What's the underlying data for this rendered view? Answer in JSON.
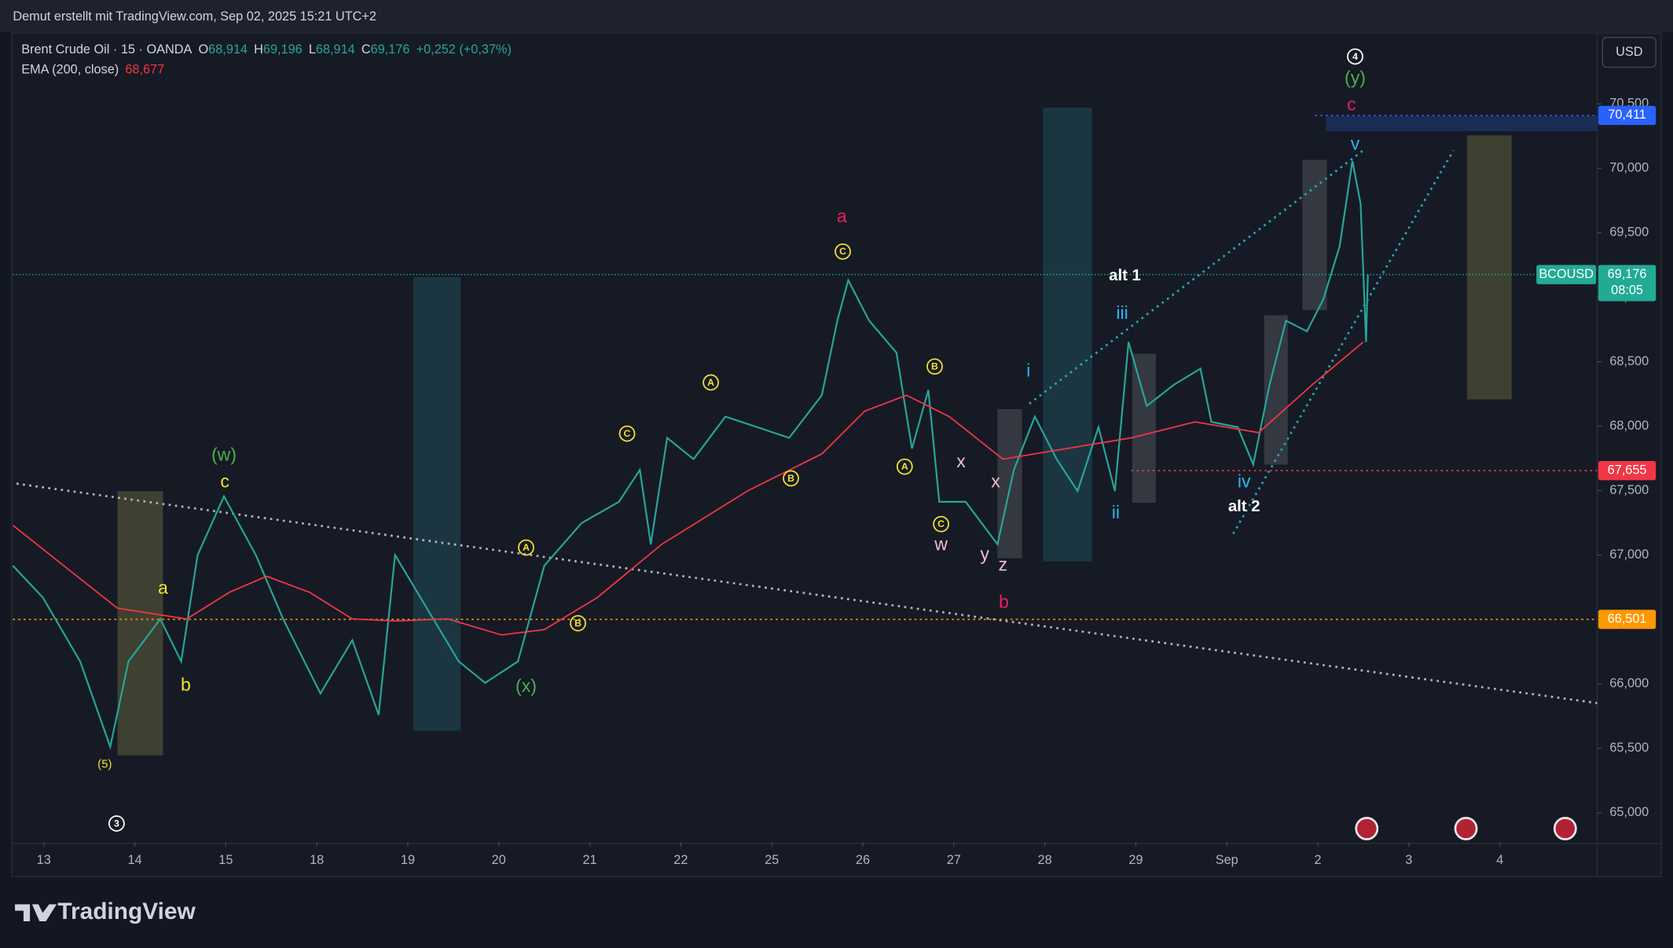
{
  "watermark": "Demut erstellt mit TradingView.com, Sep 02, 2025 15:21 UTC+2",
  "brand": "TradingView",
  "currency_button": "USD",
  "chart_data": {
    "type": "line",
    "symbol_tag": "BCOUSD",
    "countdown": "08:05",
    "legend_values": [
      {
        "key": "O",
        "text": "68,914"
      },
      {
        "key": "H",
        "text": "69,196"
      },
      {
        "key": "L",
        "text": "68,914"
      },
      {
        "key": "C",
        "text": "69,176"
      }
    ],
    "change": "+0,252 (+0,37%)",
    "ema_value": "68,677",
    "xlim": [
      -0.34,
      17.07
    ],
    "ylim": [
      64770,
      71050
    ],
    "xticks": [
      {
        "value": 0,
        "label": "13"
      },
      {
        "value": 1,
        "label": "14"
      },
      {
        "value": 2,
        "label": "15"
      },
      {
        "value": 3,
        "label": "18"
      },
      {
        "value": 4,
        "label": "19"
      },
      {
        "value": 5,
        "label": "20"
      },
      {
        "value": 6,
        "label": "21"
      },
      {
        "value": 7,
        "label": "22"
      },
      {
        "value": 8,
        "label": "25"
      },
      {
        "value": 9,
        "label": "26"
      },
      {
        "value": 10,
        "label": "27"
      },
      {
        "value": 11,
        "label": "28"
      },
      {
        "value": 12,
        "label": "29"
      },
      {
        "value": 13,
        "label": "Sep"
      },
      {
        "value": 14,
        "label": "2"
      },
      {
        "value": 15,
        "label": "3"
      },
      {
        "value": 16,
        "label": "4"
      }
    ],
    "yticks": [
      {
        "value": 65000,
        "label": "65,000"
      },
      {
        "value": 65500,
        "label": "65,500"
      },
      {
        "value": 66000,
        "label": "66,000"
      },
      {
        "value": 66500,
        "label": "66,500"
      },
      {
        "value": 67000,
        "label": "67,000"
      },
      {
        "value": 67500,
        "label": "67,500"
      },
      {
        "value": 68000,
        "label": "68,000"
      },
      {
        "value": 68500,
        "label": "68,500"
      },
      {
        "value": 69000,
        "label": "69,000"
      },
      {
        "value": 69500,
        "label": "69,500"
      },
      {
        "value": 70000,
        "label": "70,000"
      },
      {
        "value": 70500,
        "label": "70,500"
      }
    ],
    "series": [
      {
        "name": "Brent Crude Oil · 15 · OANDA",
        "color": "#26a69a",
        "x": [
          -0.34,
          -0.01,
          0.4,
          0.73,
          0.93,
          1.28,
          1.51,
          1.69,
          1.98,
          2.33,
          2.63,
          3.04,
          3.39,
          3.68,
          3.86,
          4.21,
          4.56,
          4.85,
          5.21,
          5.5,
          5.91,
          6.32,
          6.55,
          6.67,
          6.85,
          7.14,
          7.49,
          7.84,
          8.19,
          8.55,
          8.72,
          8.84,
          9.07,
          9.37,
          9.54,
          9.72,
          9.84,
          10.13,
          10.48,
          10.66,
          10.89,
          11.13,
          11.36,
          11.59,
          11.77,
          11.92,
          12.12,
          12.42,
          12.71,
          12.83,
          13.12,
          13.29,
          13.47,
          13.65,
          13.88,
          14.06,
          14.24,
          14.38,
          14.47,
          14.53,
          14.55
        ],
        "values": [
          66917,
          66670,
          66174,
          65512,
          66174,
          66504,
          66174,
          67000,
          67455,
          67000,
          66504,
          65926,
          66339,
          65760,
          67000,
          66587,
          66174,
          66008,
          66174,
          66917,
          67248,
          67413,
          67661,
          67083,
          67909,
          67744,
          68074,
          67992,
          67909,
          68240,
          68818,
          69132,
          68818,
          68570,
          67826,
          68281,
          67413,
          67413,
          67083,
          67661,
          68074,
          67744,
          67496,
          67992,
          67496,
          68653,
          68157,
          68322,
          68446,
          68033,
          67992,
          67702,
          68322,
          68818,
          68736,
          68983,
          69397,
          70058,
          69727,
          68653,
          69176
        ]
      },
      {
        "name": "EMA (200, close)",
        "color": "#f23645",
        "x": [
          -0.34,
          0.22,
          0.81,
          1.57,
          2.04,
          2.45,
          2.92,
          3.39,
          3.86,
          4.44,
          5.03,
          5.5,
          6.08,
          6.79,
          7.73,
          8.55,
          9.02,
          9.48,
          9.95,
          10.54,
          11.24,
          11.95,
          12.65,
          13.35,
          13.94,
          14.29,
          14.5
        ],
        "values": [
          67231,
          66917,
          66587,
          66504,
          66711,
          66835,
          66711,
          66504,
          66488,
          66504,
          66380,
          66421,
          66669,
          67083,
          67496,
          67785,
          68116,
          68240,
          68074,
          67744,
          67826,
          67909,
          68033,
          67950,
          68322,
          68529,
          68653
        ]
      }
    ],
    "price_lines": [
      {
        "value": 70411,
        "label": "70,411",
        "color": "#2962ff",
        "from_x": 13.97
      },
      {
        "value": 69176,
        "label": "69,176",
        "color": "#22ab94",
        "from_x": -0.34
      },
      {
        "value": 67655,
        "label": "67,655",
        "color": "#f23645",
        "from_x": 11.95
      },
      {
        "value": 66501,
        "label": "66,501",
        "color": "#ff9800",
        "from_x": -0.34
      }
    ],
    "boxes": [
      {
        "x": [
          0.81,
          1.31
        ],
        "y": [
          65446,
          67496
        ],
        "color": "#5a5a3a"
      },
      {
        "x": [
          4.06,
          4.58
        ],
        "y": [
          65636,
          69157
        ],
        "color": "#1f4a55"
      },
      {
        "x": [
          10.48,
          10.75
        ],
        "y": [
          66975,
          68132
        ],
        "color": "#4a4d55"
      },
      {
        "x": [
          10.98,
          11.52
        ],
        "y": [
          66950,
          70471
        ],
        "color": "#1f4a55"
      },
      {
        "x": [
          11.96,
          12.22
        ],
        "y": [
          67405,
          68562
        ],
        "color": "#4a4d55"
      },
      {
        "x": [
          13.41,
          13.67
        ],
        "y": [
          67702,
          68860
        ],
        "color": "#4a4d55"
      },
      {
        "x": [
          13.83,
          14.1
        ],
        "y": [
          68901,
          70066
        ],
        "color": "#4a4d55"
      },
      {
        "x": [
          15.64,
          16.13
        ],
        "y": [
          68207,
          70256
        ],
        "color": "#5a5a3a"
      },
      {
        "x": [
          14.09,
          17.07
        ],
        "y": [
          70289,
          70405
        ],
        "color": "#1e3a7a"
      }
    ],
    "trend_lines": [
      {
        "x": [
          -0.3,
          17.07
        ],
        "y": [
          67554,
          65851
        ],
        "color": "#b2b5be"
      },
      {
        "x": [
          10.83,
          14.5
        ],
        "y": [
          68174,
          70140
        ],
        "color": "#2aa3c0"
      },
      {
        "x": [
          13.07,
          15.49
        ],
        "y": [
          67165,
          70140
        ],
        "color": "#2aa3c0"
      }
    ],
    "annotations": [
      {
        "text": "(5)",
        "x": 0.67,
        "y": 65372,
        "color": "#f5e130",
        "size": 11
      },
      {
        "text": "3",
        "x": 0.8,
        "y": 64917,
        "color": "#ffffff",
        "circled": true
      },
      {
        "text": "a",
        "x": 1.31,
        "y": 66736,
        "color": "#f5e130"
      },
      {
        "text": "b",
        "x": 1.56,
        "y": 65983,
        "color": "#f5e130"
      },
      {
        "text": "c",
        "x": 1.99,
        "y": 67562,
        "color": "#f5e130"
      },
      {
        "text": "(w)",
        "x": 1.98,
        "y": 67769,
        "color": "#4caf50"
      },
      {
        "text": "(x)",
        "x": 5.3,
        "y": 65975,
        "color": "#4caf50"
      },
      {
        "text": "A",
        "x": 5.3,
        "y": 67058,
        "color": "#f5e130",
        "circled": true
      },
      {
        "text": "B",
        "x": 5.87,
        "y": 66471,
        "color": "#f5e130",
        "circled": true
      },
      {
        "text": "C",
        "x": 6.41,
        "y": 67942,
        "color": "#f5e130",
        "circled": true
      },
      {
        "text": "A",
        "x": 7.33,
        "y": 68339,
        "color": "#f5e130",
        "circled": true
      },
      {
        "text": "B",
        "x": 8.21,
        "y": 67595,
        "color": "#f5e130",
        "circled": true
      },
      {
        "text": "C",
        "x": 8.78,
        "y": 69355,
        "color": "#f5e130",
        "circled": true
      },
      {
        "text": "a",
        "x": 8.77,
        "y": 69620,
        "color": "#e91e63"
      },
      {
        "text": "B",
        "x": 9.79,
        "y": 68463,
        "color": "#f5e130",
        "circled": true
      },
      {
        "text": "A",
        "x": 9.46,
        "y": 67686,
        "color": "#f5e130",
        "circled": true
      },
      {
        "text": "C",
        "x": 9.86,
        "y": 67240,
        "color": "#f5e130",
        "circled": true
      },
      {
        "text": "w",
        "x": 9.86,
        "y": 67074,
        "color": "#f8bbd0"
      },
      {
        "text": "x",
        "x": 10.08,
        "y": 67719,
        "color": "#f8bbd0"
      },
      {
        "text": "x",
        "x": 10.46,
        "y": 67562,
        "color": "#f8bbd0"
      },
      {
        "text": "y",
        "x": 10.34,
        "y": 67000,
        "color": "#f8bbd0"
      },
      {
        "text": "z",
        "x": 10.54,
        "y": 66917,
        "color": "#f8bbd0"
      },
      {
        "text": "b",
        "x": 10.55,
        "y": 66628,
        "color": "#e91e63"
      },
      {
        "text": "i",
        "x": 10.82,
        "y": 68421,
        "color": "#29b6f6"
      },
      {
        "text": "ii",
        "x": 11.78,
        "y": 67322,
        "color": "#29b6f6"
      },
      {
        "text": "iii",
        "x": 11.85,
        "y": 68868,
        "color": "#29b6f6"
      },
      {
        "text": "iv",
        "x": 13.19,
        "y": 67562,
        "color": "#29b6f6"
      },
      {
        "text": "v",
        "x": 14.41,
        "y": 70182,
        "color": "#29b6f6"
      },
      {
        "text": "c",
        "x": 14.37,
        "y": 70488,
        "color": "#e91e63"
      },
      {
        "text": "(y)",
        "x": 14.41,
        "y": 70695,
        "color": "#4caf50"
      },
      {
        "text": "4",
        "x": 14.41,
        "y": 70868,
        "color": "#ffffff",
        "circled": true
      },
      {
        "text": "alt 1",
        "x": 11.88,
        "y": 69165,
        "color": "#ffffff"
      },
      {
        "text": "alt 2",
        "x": 13.19,
        "y": 67372,
        "color": "#ffffff"
      }
    ]
  }
}
